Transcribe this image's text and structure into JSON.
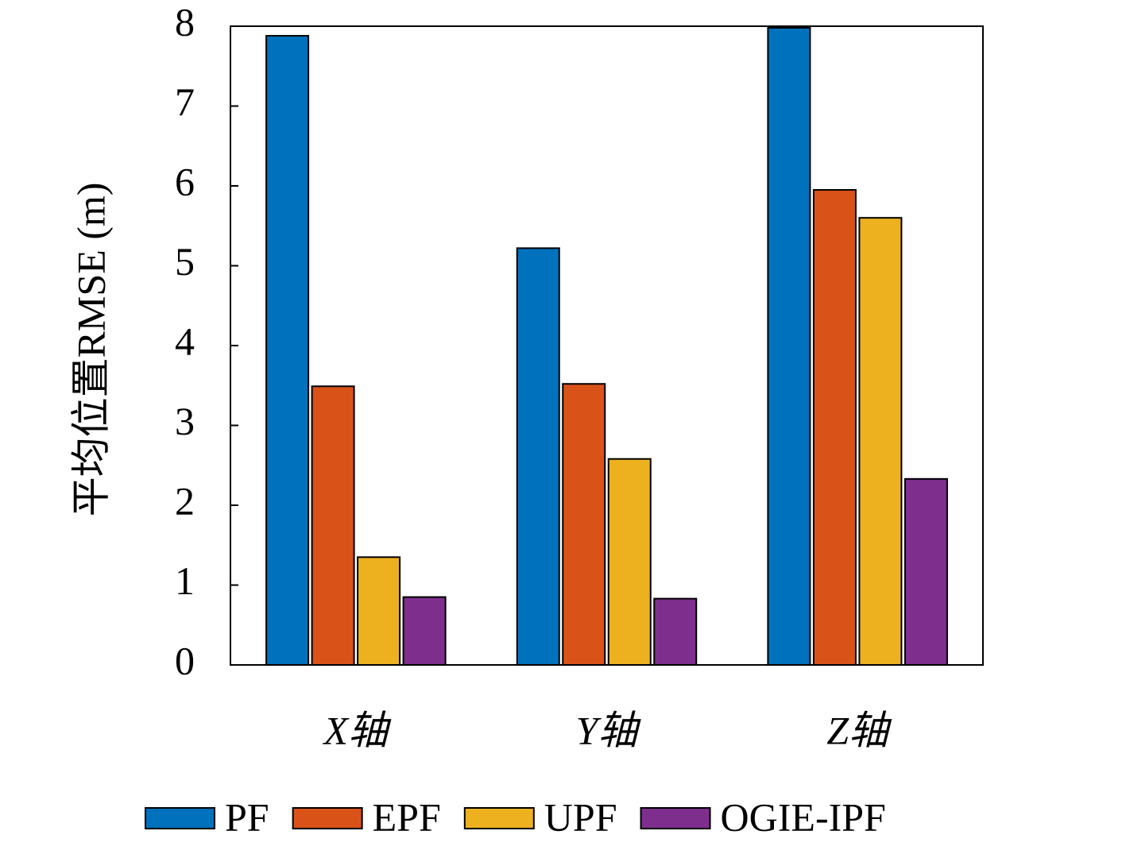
{
  "chart_data": {
    "type": "bar",
    "ylabel": "平均位置RMSE (m)",
    "categories": [
      "X轴",
      "Y轴",
      "Z轴"
    ],
    "series": [
      {
        "name": "PF",
        "color": "#0072bd",
        "values": [
          7.88,
          5.22,
          7.98
        ]
      },
      {
        "name": "EPF",
        "color": "#d95319",
        "values": [
          3.49,
          3.52,
          5.95
        ]
      },
      {
        "name": "UPF",
        "color": "#edb120",
        "values": [
          1.35,
          2.58,
          5.6
        ]
      },
      {
        "name": "OGIE-IPF",
        "color": "#7e2f8e",
        "values": [
          0.85,
          0.83,
          2.33
        ]
      }
    ],
    "ylim": [
      0,
      8
    ],
    "yticks": [
      0,
      1,
      2,
      3,
      4,
      5,
      6,
      7,
      8
    ],
    "legend": "bottom",
    "grid": false
  }
}
